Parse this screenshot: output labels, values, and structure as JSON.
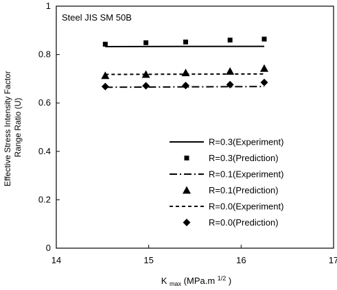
{
  "chart_data": {
    "type": "scatter",
    "annotation": "Steel  JIS SM 50B",
    "xlabel": {
      "main": "K",
      "sub": "max",
      "unit_prefix": "(MPa.m",
      "unit_sup": "1/2",
      "unit_suffix": ")"
    },
    "ylabel": [
      "Effective Stress Intensity Factor",
      "Range Ratio (U)"
    ],
    "xlim": [
      14,
      17
    ],
    "ylim": [
      0,
      1
    ],
    "xticks": [
      14,
      15,
      16,
      17
    ],
    "yticks": [
      0,
      0.2,
      0.4,
      0.6,
      0.8,
      1
    ],
    "xtick_labels": [
      "14",
      "15",
      "16",
      "17"
    ],
    "ytick_labels": [
      "0",
      "0.2",
      "0.4",
      "0.6",
      "0.8",
      "1"
    ],
    "grid": false,
    "legend_position": "bottom-right",
    "series": [
      {
        "name": "R=0.3(Experiment)",
        "kind": "line",
        "dash": "solid",
        "x": [
          14.53,
          16.25
        ],
        "y": [
          0.833,
          0.834
        ]
      },
      {
        "name": "R=0.3(Prediction)",
        "kind": "marker",
        "marker": "square",
        "x": [
          14.53,
          14.97,
          15.4,
          15.88,
          16.25
        ],
        "y": [
          0.843,
          0.849,
          0.852,
          0.86,
          0.864
        ]
      },
      {
        "name": "R=0.1(Experiment)",
        "kind": "line",
        "dash": "dashdot",
        "x": [
          14.53,
          16.25
        ],
        "y": [
          0.665,
          0.668
        ]
      },
      {
        "name": "R=0.1(Prediction)",
        "kind": "marker",
        "marker": "triangle",
        "x": [
          14.53,
          14.97,
          15.4,
          15.88,
          16.25
        ],
        "y": [
          0.713,
          0.718,
          0.725,
          0.731,
          0.743
        ]
      },
      {
        "name": "R=0.0(Experiment)",
        "kind": "line",
        "dash": "dashed",
        "x": [
          14.53,
          16.25
        ],
        "y": [
          0.718,
          0.72
        ]
      },
      {
        "name": "R=0.0(Prediction)",
        "kind": "marker",
        "marker": "diamond",
        "x": [
          14.53,
          14.97,
          15.4,
          15.88,
          16.25
        ],
        "y": [
          0.668,
          0.671,
          0.672,
          0.676,
          0.685
        ]
      }
    ]
  }
}
